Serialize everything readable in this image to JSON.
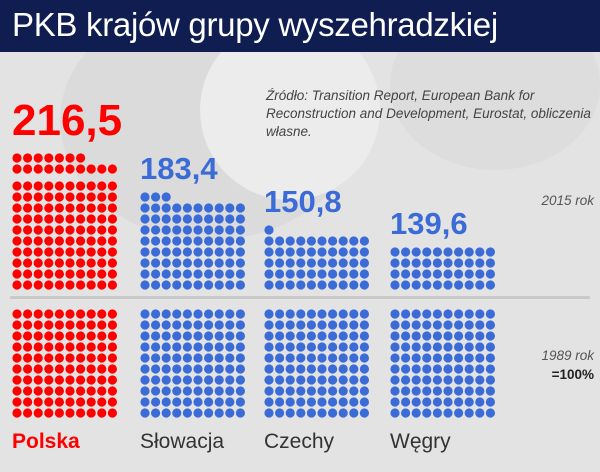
{
  "title": "PKB krajów grupy wyszehradzkiej",
  "source": "Źródło: Transition Report, European Bank for Reconstruction and Development, Eurostat, obliczenia własne.",
  "colors": {
    "poland": "#ff0000",
    "others": "#3b6bd6",
    "title_bar": "#0f1d50"
  },
  "chart_data": {
    "type": "pictogram",
    "title": "PKB krajów grupy wyszehradzkiej",
    "unit": "1989 rok = 100%, one dot = 1 pp",
    "base_label": "1989 rok",
    "base_value_label": "=100%",
    "current_label": "2015 rok",
    "base_value": 100,
    "categories": [
      "Polska",
      "Słowacja",
      "Czechy",
      "Węgry"
    ],
    "values": [
      216.5,
      183.4,
      150.8,
      139.6
    ],
    "value_labels": [
      "216,5",
      "183,4",
      "150,8",
      "139,6"
    ]
  }
}
